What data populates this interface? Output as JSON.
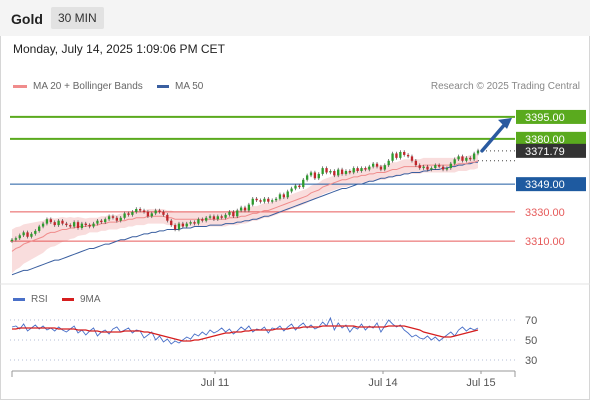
{
  "header": {
    "instrument": "Gold",
    "timeframe": "30 MIN"
  },
  "date_line": "Monday, July 14, 2025 1:09:06 PM CET",
  "credit": "Research © 2025 Trading Central",
  "legend": {
    "ma20_label": "MA 20 + Bollinger Bands",
    "ma20_color": "#f08c8c",
    "ma50_label": "MA 50",
    "ma50_color": "#3a5fa0"
  },
  "rsi_legend": {
    "rsi_label": "RSI",
    "rsi_color": "#4a70c8",
    "ma_label": "9MA",
    "ma_color": "#d61e1e"
  },
  "colors": {
    "up": "#2e9b2e",
    "down": "#c0262c",
    "resistance": "#5aaa1e",
    "support_blue": "#1e5aa0",
    "support_red": "#e65a5a",
    "arrow": "#2a5aa0",
    "price_tag": "#333333",
    "band": "#f8d4d4"
  },
  "chart_data": [
    {
      "type": "candlestick",
      "title": "",
      "ylim": [
        3280,
        3410
      ],
      "x_ticks": [
        "Jul 11",
        "Jul 14",
        "Jul 15"
      ],
      "current_price": 3371.79,
      "levels": [
        {
          "value": 3395.0,
          "label": "3395.00",
          "kind": "resistance"
        },
        {
          "value": 3380.0,
          "label": "3380.00",
          "kind": "resistance"
        },
        {
          "value": 3349.0,
          "label": "3349.00",
          "kind": "pivot"
        },
        {
          "value": 3330.0,
          "label": "3330.00",
          "kind": "support"
        },
        {
          "value": 3310.0,
          "label": "3310.00",
          "kind": "support"
        }
      ],
      "close": [
        3311,
        3312,
        3314,
        3316,
        3313,
        3315,
        3317,
        3320,
        3322,
        3325,
        3323,
        3321,
        3324,
        3322,
        3321,
        3320,
        3323,
        3319,
        3322,
        3321,
        3320,
        3322,
        3324,
        3323,
        3325,
        3327,
        3326,
        3324,
        3326,
        3329,
        3328,
        3330,
        3332,
        3331,
        3330,
        3327,
        3329,
        3331,
        3330,
        3328,
        3324,
        3321,
        3318,
        3322,
        3320,
        3322,
        3323,
        3322,
        3325,
        3324,
        3326,
        3327,
        3325,
        3327,
        3326,
        3328,
        3330,
        3327,
        3331,
        3333,
        3331,
        3335,
        3339,
        3338,
        3337,
        3339,
        3337,
        3338,
        3339,
        3342,
        3340,
        3344,
        3346,
        3348,
        3347,
        3352,
        3355,
        3357,
        3353,
        3356,
        3360,
        3357,
        3358,
        3355,
        3359,
        3356,
        3358,
        3357,
        3360,
        3358,
        3360,
        3359,
        3361,
        3363,
        3361,
        3359,
        3362,
        3365,
        3370,
        3367,
        3371,
        3369,
        3368,
        3365,
        3362,
        3360,
        3361,
        3359,
        3360,
        3362,
        3361,
        3359,
        3360,
        3363,
        3366,
        3368,
        3365,
        3367,
        3366,
        3370,
        3372
      ],
      "ma20": [
        3303,
        3305,
        3306,
        3308,
        3309,
        3310,
        3311,
        3312,
        3313,
        3315,
        3316,
        3316,
        3317,
        3318,
        3318,
        3319,
        3319,
        3320,
        3320,
        3320,
        3321,
        3321,
        3321,
        3322,
        3322,
        3323,
        3323,
        3323,
        3324,
        3324,
        3325,
        3325,
        3326,
        3326,
        3326,
        3327,
        3327,
        3327,
        3327,
        3327,
        3326,
        3326,
        3325,
        3325,
        3325,
        3325,
        3325,
        3325,
        3325,
        3325,
        3325,
        3325,
        3325,
        3325,
        3325,
        3325,
        3326,
        3326,
        3326,
        3327,
        3327,
        3328,
        3329,
        3329,
        3330,
        3331,
        3331,
        3332,
        3333,
        3334,
        3335,
        3336,
        3337,
        3338,
        3339,
        3340,
        3341,
        3343,
        3344,
        3345,
        3347,
        3348,
        3349,
        3350,
        3351,
        3352,
        3352,
        3353,
        3354,
        3354,
        3355,
        3355,
        3356,
        3356,
        3357,
        3357,
        3357,
        3358,
        3359,
        3359,
        3360,
        3361,
        3361,
        3361,
        3361,
        3361,
        3362,
        3362,
        3362,
        3362,
        3362,
        3362,
        3362,
        3362,
        3362,
        3363,
        3363,
        3363,
        3364,
        3364,
        3365
      ],
      "ma50": [
        3287,
        3288,
        3289,
        3290,
        3290,
        3291,
        3292,
        3293,
        3294,
        3295,
        3296,
        3297,
        3297,
        3298,
        3299,
        3300,
        3301,
        3302,
        3303,
        3304,
        3305,
        3305,
        3306,
        3307,
        3308,
        3308,
        3309,
        3310,
        3311,
        3311,
        3312,
        3313,
        3313,
        3314,
        3315,
        3315,
        3316,
        3316,
        3317,
        3317,
        3318,
        3318,
        3318,
        3318,
        3319,
        3319,
        3319,
        3320,
        3320,
        3320,
        3320,
        3321,
        3321,
        3321,
        3321,
        3322,
        3322,
        3322,
        3323,
        3323,
        3324,
        3324,
        3325,
        3325,
        3326,
        3327,
        3327,
        3328,
        3329,
        3330,
        3331,
        3332,
        3333,
        3334,
        3335,
        3336,
        3337,
        3338,
        3339,
        3340,
        3341,
        3342,
        3343,
        3344,
        3345,
        3346,
        3346,
        3347,
        3348,
        3349,
        3349,
        3350,
        3351,
        3351,
        3352,
        3353,
        3353,
        3354,
        3354,
        3355,
        3355,
        3356,
        3356,
        3357,
        3357,
        3357,
        3358,
        3358,
        3359,
        3359,
        3359,
        3360,
        3360,
        3361,
        3361,
        3362,
        3362,
        3363,
        3363,
        3364,
        3364
      ]
    },
    {
      "type": "line",
      "title": "",
      "ylim": [
        20,
        80
      ],
      "y_ticks": [
        "70",
        "50",
        "30"
      ],
      "series": [
        {
          "name": "RSI",
          "values": [
            63,
            64,
            61,
            66,
            59,
            62,
            65,
            61,
            64,
            60,
            62,
            59,
            63,
            60,
            58,
            61,
            64,
            57,
            60,
            55,
            59,
            62,
            54,
            58,
            60,
            56,
            61,
            63,
            58,
            60,
            62,
            57,
            60,
            59,
            52,
            55,
            58,
            50,
            54,
            48,
            51,
            46,
            49,
            47,
            50,
            53,
            51,
            56,
            54,
            58,
            55,
            60,
            57,
            59,
            62,
            58,
            61,
            56,
            59,
            63,
            60,
            64,
            58,
            61,
            60,
            63,
            57,
            62,
            61,
            64,
            59,
            63,
            66,
            60,
            64,
            67,
            62,
            65,
            61,
            63,
            68,
            64,
            72,
            60,
            67,
            62,
            65,
            58,
            63,
            61,
            66,
            60,
            64,
            62,
            67,
            58,
            64,
            70,
            66,
            63,
            65,
            60,
            57,
            53,
            55,
            52,
            51,
            54,
            50,
            53,
            49,
            52,
            55,
            58,
            54,
            60,
            63,
            59,
            62,
            60,
            62
          ]
        },
        {
          "name": "9MA",
          "values": [
            61,
            61,
            62,
            62,
            62,
            62,
            62,
            62,
            62,
            62,
            62,
            62,
            61,
            61,
            61,
            61,
            61,
            60,
            60,
            60,
            59,
            59,
            59,
            58,
            58,
            58,
            58,
            58,
            58,
            59,
            59,
            59,
            59,
            59,
            58,
            58,
            57,
            56,
            55,
            54,
            53,
            52,
            51,
            50,
            49,
            49,
            49,
            50,
            50,
            51,
            52,
            53,
            54,
            55,
            56,
            57,
            57,
            58,
            58,
            58,
            59,
            59,
            60,
            60,
            60,
            60,
            60,
            60,
            61,
            61,
            61,
            61,
            62,
            62,
            62,
            63,
            63,
            63,
            63,
            63,
            64,
            64,
            64,
            64,
            64,
            64,
            64,
            64,
            64,
            63,
            63,
            63,
            63,
            63,
            63,
            63,
            63,
            64,
            64,
            64,
            64,
            64,
            63,
            62,
            61,
            60,
            58,
            57,
            56,
            55,
            54,
            53,
            53,
            53,
            54,
            55,
            56,
            57,
            58,
            59,
            60
          ]
        }
      ]
    }
  ]
}
